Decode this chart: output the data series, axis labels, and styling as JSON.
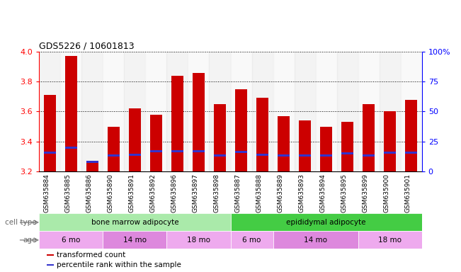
{
  "title": "GDS5226 / 10601813",
  "samples": [
    "GSM635884",
    "GSM635885",
    "GSM635886",
    "GSM635890",
    "GSM635891",
    "GSM635892",
    "GSM635896",
    "GSM635897",
    "GSM635898",
    "GSM635887",
    "GSM635888",
    "GSM635889",
    "GSM635893",
    "GSM635894",
    "GSM635895",
    "GSM635899",
    "GSM635900",
    "GSM635901"
  ],
  "bar_values": [
    3.71,
    3.97,
    3.27,
    3.5,
    3.62,
    3.58,
    3.84,
    3.86,
    3.65,
    3.75,
    3.69,
    3.57,
    3.54,
    3.5,
    3.53,
    3.65,
    3.6,
    3.68
  ],
  "percentile_values": [
    3.325,
    3.36,
    3.265,
    3.305,
    3.31,
    3.335,
    3.335,
    3.335,
    3.305,
    3.33,
    3.31,
    3.305,
    3.305,
    3.305,
    3.32,
    3.305,
    3.325,
    3.325
  ],
  "ymin": 3.2,
  "ymax": 4.0,
  "yticks_left": [
    3.2,
    3.4,
    3.6,
    3.8,
    4.0
  ],
  "yticks_right": [
    0,
    25,
    50,
    75,
    100
  ],
  "yticks_right_labels": [
    "0",
    "25",
    "50",
    "75",
    "100%"
  ],
  "bar_color": "#cc0000",
  "blue_color": "#3333cc",
  "cell_type_groups": [
    {
      "label": "bone marrow adipocyte",
      "start": 0,
      "end": 8,
      "color": "#aaeaaa"
    },
    {
      "label": "epididymal adipocyte",
      "start": 9,
      "end": 17,
      "color": "#44cc44"
    }
  ],
  "age_groups": [
    {
      "label": "6 mo",
      "start": 0,
      "end": 2,
      "color": "#eeaaee"
    },
    {
      "label": "14 mo",
      "start": 3,
      "end": 5,
      "color": "#dd88dd"
    },
    {
      "label": "18 mo",
      "start": 6,
      "end": 8,
      "color": "#eeaaee"
    },
    {
      "label": "6 mo",
      "start": 9,
      "end": 10,
      "color": "#eeaaee"
    },
    {
      "label": "14 mo",
      "start": 11,
      "end": 14,
      "color": "#dd88dd"
    },
    {
      "label": "18 mo",
      "start": 15,
      "end": 17,
      "color": "#eeaaee"
    }
  ],
  "cell_type_row_label": "cell type",
  "age_row_label": "age",
  "legend_items": [
    {
      "label": "transformed count",
      "color": "#cc0000"
    },
    {
      "label": "percentile rank within the sample",
      "color": "#3333cc"
    }
  ],
  "bar_width": 0.55,
  "bg_color": "#ffffff"
}
